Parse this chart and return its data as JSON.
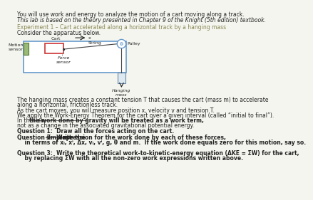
{
  "background_color": "#f5f5f0",
  "title_line1": "You will use work and energy to analyze the motion of a cart moving along a track.",
  "title_line2": "This lab is based on the theory presented in Chapter 9 of the Knight (5th edition) textbook.",
  "experiment_heading": "Experiment 1 – Cart accelerated along a horizontal track by a hanging mass",
  "consider_text": "Consider the apparatus below.",
  "para1": "The hanging mass creates a constant tension T that causes the cart (mass m) to accelerate",
  "para1b": "along a horizontal, frictionless track.",
  "para2": "As the cart moves, you will measure position x, velocity v and tension T.",
  "para3": "We apply the Work-Energy Theorem for the cart over a given interval (called “initial to final”).",
  "para4a": "In this lab, ",
  "para4b": "the work done by gravity will be treated as a work term,",
  "para4c": "not as a change in the associated gravitational potential energy.",
  "q1": "Question 1:  Draw all the forces acting on the cart.",
  "q2a": "Question 2:  Write the ",
  "q2b": "simplest",
  "q2c": " expression for the work done by each of these forces,",
  "q2d": "    in terms of xᵢ, xⁱ, Δx, vᵢ, vⁱ, g, θ and m.  If the work done equals zero for this motion, say so.",
  "q3a": "Question 3:  Write the theoretical work-to-kinetic-energy equation (ΔKE = ΣW) for the cart,",
  "q3b": "    by replacing ΣW with all the non-zero work expressions written above.",
  "label_motion_sensor": "Motion\nsensor",
  "label_cart": "Cart",
  "label_string": "String",
  "label_pulley": "Pulley",
  "label_force_sensor": "Force\nsensor",
  "label_hanging_mass": "Hanging\nmass",
  "label_x": "x",
  "track_color": "#6699cc",
  "cart_color": "#cc3333",
  "motion_sensor_color": "#99bb77",
  "pulley_color": "#6699cc",
  "hanging_mass_color": "#aabbcc",
  "text_color": "#222222",
  "heading_color": "#888855",
  "body_fontsize": 5.5,
  "heading_fontsize": 5.5,
  "small_fontsize": 4.5
}
